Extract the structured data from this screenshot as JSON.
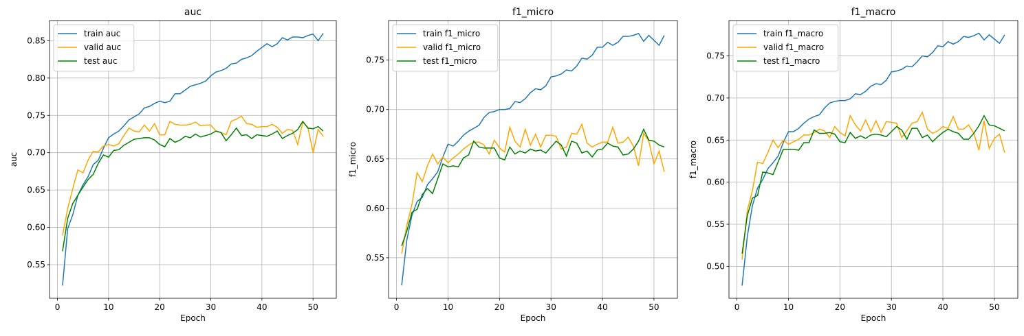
{
  "chart_data": [
    {
      "type": "line",
      "title": "auc",
      "x_label": "Epoch",
      "y_label": "auc",
      "grid": true,
      "legend": "upper left",
      "x": [
        1,
        2,
        3,
        4,
        5,
        6,
        7,
        8,
        9,
        10,
        11,
        12,
        13,
        14,
        15,
        16,
        17,
        18,
        19,
        20,
        21,
        22,
        23,
        24,
        25,
        26,
        27,
        28,
        29,
        30,
        31,
        32,
        33,
        34,
        35,
        36,
        37,
        38,
        39,
        40,
        41,
        42,
        43,
        44,
        45,
        46,
        47,
        48,
        49,
        50,
        51,
        52
      ],
      "xlim": [
        -1.55,
        54.55
      ],
      "xticks": [
        0,
        10,
        20,
        30,
        40,
        50
      ],
      "ylim": [
        0.505,
        0.877
      ],
      "yticks": [
        0.55,
        {
          "value": 0.6,
          "label": "0.60"
        },
        0.65,
        {
          "value": 0.7,
          "label": "0.70"
        },
        0.75,
        {
          "value": 0.8,
          "label": "0.80"
        },
        0.85
      ],
      "series": [
        {
          "name": "train auc",
          "color": "#1f77b4",
          "values": [
            0.522,
            0.598,
            0.617,
            0.643,
            0.657,
            0.668,
            0.684,
            0.69,
            0.706,
            0.72,
            0.725,
            0.729,
            0.736,
            0.744,
            0.748,
            0.752,
            0.76,
            0.762,
            0.766,
            0.769,
            0.767,
            0.769,
            0.779,
            0.779,
            0.784,
            0.789,
            0.791,
            0.793,
            0.796,
            0.803,
            0.808,
            0.81,
            0.813,
            0.819,
            0.82,
            0.825,
            0.827,
            0.83,
            0.836,
            0.841,
            0.846,
            0.842,
            0.846,
            0.854,
            0.851,
            0.855,
            0.855,
            0.854,
            0.857,
            0.859,
            0.85,
            0.86
          ]
        },
        {
          "name": "valid auc",
          "color": "#ffa500",
          "values": [
            0.589,
            0.625,
            0.652,
            0.677,
            0.673,
            0.69,
            0.702,
            0.701,
            0.709,
            0.711,
            0.709,
            0.712,
            0.723,
            0.733,
            0.729,
            0.728,
            0.737,
            0.729,
            0.739,
            0.724,
            0.724,
            0.742,
            0.738,
            0.737,
            0.737,
            0.738,
            0.741,
            0.736,
            0.737,
            0.737,
            0.729,
            0.727,
            0.724,
            0.742,
            0.745,
            0.749,
            0.739,
            0.738,
            0.734,
            0.735,
            0.735,
            0.738,
            0.734,
            0.726,
            0.731,
            0.73,
            0.711,
            0.741,
            0.734,
            0.7,
            0.731,
            0.722
          ]
        },
        {
          "name": "test auc",
          "color": "#008000",
          "values": [
            0.568,
            0.612,
            0.632,
            0.643,
            0.654,
            0.664,
            0.671,
            0.686,
            0.697,
            0.694,
            0.703,
            0.704,
            0.71,
            0.714,
            0.718,
            0.719,
            0.72,
            0.72,
            0.717,
            0.711,
            0.708,
            0.719,
            0.714,
            0.717,
            0.722,
            0.72,
            0.725,
            0.721,
            0.723,
            0.725,
            0.729,
            0.727,
            0.716,
            0.724,
            0.733,
            0.723,
            0.724,
            0.719,
            0.724,
            0.723,
            0.722,
            0.725,
            0.729,
            0.719,
            0.723,
            0.726,
            0.731,
            0.742,
            0.733,
            0.732,
            0.735,
            0.729
          ]
        }
      ]
    },
    {
      "type": "line",
      "title": "f1_micro",
      "x_label": "Epoch",
      "y_label": "f1_micro",
      "grid": true,
      "legend": "upper left",
      "x": [
        1,
        2,
        3,
        4,
        5,
        6,
        7,
        8,
        9,
        10,
        11,
        12,
        13,
        14,
        15,
        16,
        17,
        18,
        19,
        20,
        21,
        22,
        23,
        24,
        25,
        26,
        27,
        28,
        29,
        30,
        31,
        32,
        33,
        34,
        35,
        36,
        37,
        38,
        39,
        40,
        41,
        42,
        43,
        44,
        45,
        46,
        47,
        48,
        49,
        50,
        51,
        52
      ],
      "xlim": [
        -1.55,
        54.55
      ],
      "xticks": [
        0,
        10,
        20,
        30,
        40,
        50
      ],
      "ylim": [
        0.509,
        0.79
      ],
      "yticks": [
        0.55,
        {
          "value": 0.6,
          "label": "0.60"
        },
        0.65,
        {
          "value": 0.7,
          "label": "0.70"
        },
        0.75
      ],
      "series": [
        {
          "name": "train f1_micro",
          "color": "#1f77b4",
          "values": [
            0.522,
            0.568,
            0.593,
            0.607,
            0.611,
            0.624,
            0.63,
            0.637,
            0.652,
            0.665,
            0.663,
            0.668,
            0.674,
            0.678,
            0.681,
            0.684,
            0.692,
            0.697,
            0.698,
            0.7,
            0.7,
            0.701,
            0.708,
            0.707,
            0.711,
            0.717,
            0.721,
            0.72,
            0.724,
            0.733,
            0.734,
            0.736,
            0.74,
            0.739,
            0.744,
            0.752,
            0.751,
            0.755,
            0.763,
            0.763,
            0.768,
            0.765,
            0.768,
            0.774,
            0.774,
            0.775,
            0.777,
            0.769,
            0.775,
            0.77,
            0.765,
            0.775
          ]
        },
        {
          "name": "valid f1_micro",
          "color": "#ffa500",
          "values": [
            0.554,
            0.583,
            0.604,
            0.636,
            0.627,
            0.643,
            0.655,
            0.645,
            0.652,
            0.646,
            0.651,
            0.655,
            0.66,
            0.664,
            0.667,
            0.667,
            0.664,
            0.655,
            0.669,
            0.661,
            0.657,
            0.682,
            0.668,
            0.662,
            0.68,
            0.664,
            0.675,
            0.662,
            0.674,
            0.674,
            0.673,
            0.66,
            0.662,
            0.676,
            0.675,
            0.685,
            0.666,
            0.662,
            0.665,
            0.667,
            0.667,
            0.682,
            0.666,
            0.667,
            0.672,
            0.663,
            0.643,
            0.676,
            0.668,
            0.645,
            0.658,
            0.637
          ]
        },
        {
          "name": "test f1_micro",
          "color": "#008000",
          "values": [
            0.562,
            0.577,
            0.596,
            0.599,
            0.614,
            0.62,
            0.615,
            0.63,
            0.645,
            0.642,
            0.643,
            0.642,
            0.651,
            0.654,
            0.668,
            0.662,
            0.661,
            0.661,
            0.661,
            0.651,
            0.649,
            0.662,
            0.655,
            0.658,
            0.656,
            0.66,
            0.658,
            0.659,
            0.656,
            0.662,
            0.668,
            0.664,
            0.653,
            0.668,
            0.666,
            0.656,
            0.658,
            0.652,
            0.659,
            0.66,
            0.666,
            0.663,
            0.662,
            0.654,
            0.655,
            0.66,
            0.668,
            0.68,
            0.669,
            0.668,
            0.664,
            0.662
          ]
        }
      ]
    },
    {
      "type": "line",
      "title": "f1_macro",
      "x_label": "Epoch",
      "y_label": "f1_macro",
      "grid": true,
      "legend": "upper left",
      "x": [
        1,
        2,
        3,
        4,
        5,
        6,
        7,
        8,
        9,
        10,
        11,
        12,
        13,
        14,
        15,
        16,
        17,
        18,
        19,
        20,
        21,
        22,
        23,
        24,
        25,
        26,
        27,
        28,
        29,
        30,
        31,
        32,
        33,
        34,
        35,
        36,
        37,
        38,
        39,
        40,
        41,
        42,
        43,
        44,
        45,
        46,
        47,
        48,
        49,
        50,
        51,
        52
      ],
      "xlim": [
        -1.55,
        54.55
      ],
      "xticks": [
        0,
        10,
        20,
        30,
        40,
        50
      ],
      "ylim": [
        0.462,
        0.792
      ],
      "yticks": [
        {
          "value": 0.5,
          "label": "0.50"
        },
        0.55,
        {
          "value": 0.6,
          "label": "0.60"
        },
        0.65,
        {
          "value": 0.7,
          "label": "0.70"
        },
        0.75
      ],
      "series": [
        {
          "name": "train f1_macro",
          "color": "#1f77b4",
          "values": [
            0.477,
            0.535,
            0.572,
            0.593,
            0.603,
            0.616,
            0.623,
            0.631,
            0.647,
            0.66,
            0.66,
            0.664,
            0.67,
            0.675,
            0.678,
            0.68,
            0.688,
            0.694,
            0.696,
            0.697,
            0.697,
            0.699,
            0.705,
            0.704,
            0.708,
            0.714,
            0.717,
            0.716,
            0.721,
            0.731,
            0.732,
            0.734,
            0.738,
            0.737,
            0.743,
            0.75,
            0.749,
            0.754,
            0.762,
            0.761,
            0.767,
            0.764,
            0.767,
            0.773,
            0.772,
            0.774,
            0.777,
            0.769,
            0.775,
            0.77,
            0.765,
            0.775
          ]
        },
        {
          "name": "valid f1_macro",
          "color": "#ffa500",
          "values": [
            0.508,
            0.566,
            0.59,
            0.624,
            0.622,
            0.635,
            0.65,
            0.641,
            0.65,
            0.645,
            0.648,
            0.651,
            0.656,
            0.656,
            0.659,
            0.663,
            0.661,
            0.653,
            0.666,
            0.659,
            0.655,
            0.679,
            0.668,
            0.661,
            0.674,
            0.66,
            0.673,
            0.659,
            0.672,
            0.671,
            0.67,
            0.653,
            0.661,
            0.67,
            0.672,
            0.683,
            0.663,
            0.658,
            0.661,
            0.666,
            0.664,
            0.678,
            0.663,
            0.663,
            0.668,
            0.658,
            0.638,
            0.673,
            0.64,
            0.652,
            0.657,
            0.635
          ]
        },
        {
          "name": "test f1_macro",
          "color": "#008000",
          "values": [
            0.515,
            0.56,
            0.581,
            0.584,
            0.612,
            0.611,
            0.609,
            0.624,
            0.639,
            0.639,
            0.639,
            0.638,
            0.647,
            0.647,
            0.662,
            0.658,
            0.658,
            0.659,
            0.657,
            0.648,
            0.647,
            0.659,
            0.652,
            0.655,
            0.652,
            0.656,
            0.657,
            0.656,
            0.654,
            0.66,
            0.666,
            0.662,
            0.651,
            0.664,
            0.664,
            0.653,
            0.656,
            0.648,
            0.654,
            0.659,
            0.663,
            0.66,
            0.658,
            0.651,
            0.651,
            0.658,
            0.667,
            0.679,
            0.668,
            0.667,
            0.664,
            0.661
          ]
        }
      ]
    }
  ]
}
